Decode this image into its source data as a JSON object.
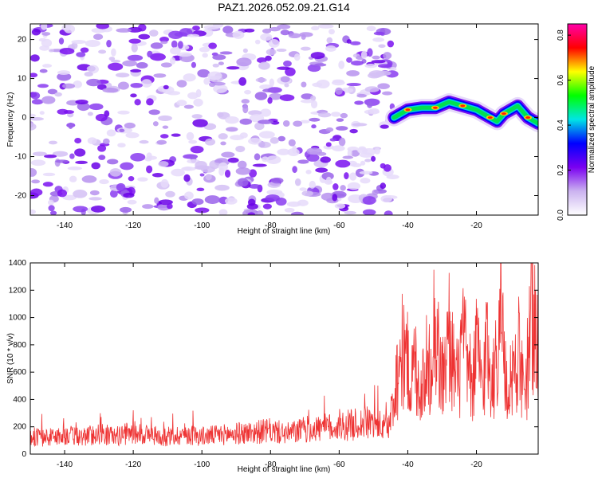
{
  "title": "PAZ1.2026.052.09.21.G14",
  "chart_data": [
    {
      "type": "heatmap",
      "title": "PAZ1.2026.052.09.21.G14",
      "xlabel": "Height of straight line (km)",
      "ylabel": "Frequency (Hz)",
      "xlim": [
        -150,
        -2
      ],
      "ylim": [
        -25,
        24
      ],
      "xticks": [
        -140,
        -120,
        -100,
        -80,
        -60,
        -40,
        -20
      ],
      "yticks": [
        -20,
        -10,
        0,
        10,
        20
      ],
      "noise_region_x": [
        -150,
        -44
      ],
      "signal_track": [
        {
          "x": -44,
          "y": 0
        },
        {
          "x": -40,
          "y": 2
        },
        {
          "x": -36,
          "y": 2.5
        },
        {
          "x": -32,
          "y": 2.5
        },
        {
          "x": -28,
          "y": 4
        },
        {
          "x": -24,
          "y": 3
        },
        {
          "x": -20,
          "y": 2
        },
        {
          "x": -16,
          "y": 0
        },
        {
          "x": -14,
          "y": -1
        },
        {
          "x": -12,
          "y": 1
        },
        {
          "x": -8,
          "y": 3
        },
        {
          "x": -5,
          "y": 0
        },
        {
          "x": -2,
          "y": -1.5
        }
      ],
      "colorbar": {
        "label": "Normalized spectral amplitude",
        "range": [
          0,
          0.85
        ],
        "ticks": [
          "0.0",
          "0.2",
          "0.4",
          "0.6",
          "0.8"
        ],
        "tick_values": [
          0.0,
          0.2,
          0.4,
          0.6,
          0.8
        ],
        "colors": [
          "#ffffff",
          "#cbb3f0",
          "#7a00f0",
          "#0000ff",
          "#00e5e5",
          "#00ff00",
          "#ffff00",
          "#ff0000",
          "#ff00aa"
        ]
      }
    },
    {
      "type": "line",
      "xlabel": "Height of straight line (km)",
      "ylabel": "SNR (10 * v/v)",
      "xlim": [
        -150,
        -2
      ],
      "ylim": [
        0,
        1400
      ],
      "xticks": [
        -140,
        -120,
        -100,
        -80,
        -60,
        -40,
        -20
      ],
      "yticks": [
        0,
        200,
        400,
        600,
        800,
        1000,
        1200,
        1400
      ],
      "color": "#ee3333",
      "series": [
        {
          "name": "SNR",
          "x": [
            -150,
            -145,
            -140,
            -135,
            -130,
            -125,
            -120,
            -115,
            -110,
            -105,
            -100,
            -95,
            -90,
            -85,
            -80,
            -75,
            -70,
            -65,
            -60,
            -55,
            -50,
            -46,
            -45,
            -44,
            -43,
            -42,
            -41,
            -40,
            -39,
            -38,
            -37,
            -36,
            -35,
            -34,
            -33,
            -32,
            -31,
            -30,
            -29,
            -28,
            -27,
            -26,
            -25,
            -24,
            -23,
            -22,
            -21,
            -20,
            -19,
            -18,
            -17,
            -16,
            -15,
            -14,
            -13,
            -12,
            -11,
            -10,
            -9,
            -8,
            -7,
            -6,
            -5,
            -4,
            -3,
            -2
          ],
          "values": [
            130,
            120,
            140,
            125,
            150,
            130,
            160,
            140,
            120,
            150,
            130,
            140,
            150,
            160,
            170,
            150,
            180,
            190,
            200,
            220,
            230,
            180,
            260,
            450,
            600,
            720,
            780,
            650,
            520,
            680,
            560,
            450,
            700,
            560,
            820,
            1000,
            700,
            560,
            620,
            880,
            720,
            540,
            560,
            860,
            700,
            560,
            520,
            780,
            620,
            480,
            880,
            600,
            560,
            700,
            1380,
            700,
            380,
            620,
            560,
            820,
            600,
            350,
            700,
            1180,
            900,
            760
          ]
        }
      ]
    }
  ]
}
